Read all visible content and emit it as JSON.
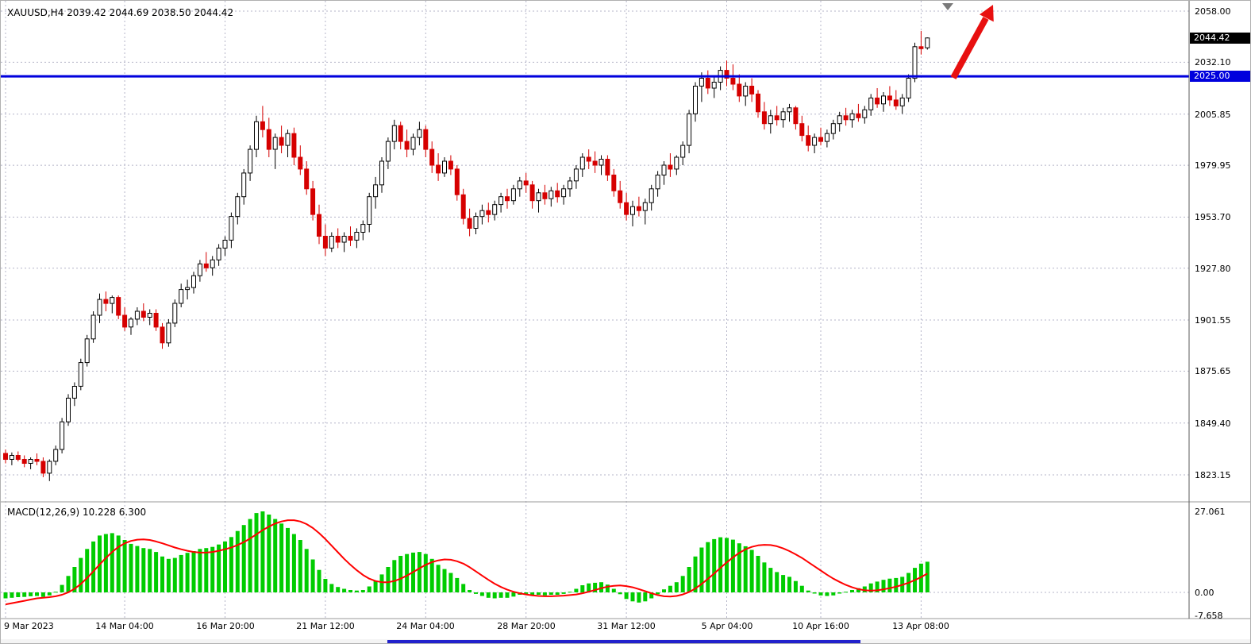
{
  "window": {
    "info_text": "XAUUSD,H4 2039.42 2044.69 2038.50 2044.42"
  },
  "colors": {
    "background": "#ffffff",
    "grid": "#b4b4c8",
    "up_fill": "#ffffff",
    "up_outline": "#000000",
    "down_candle": "#d60000",
    "level_line": "#0000dd",
    "current_badge_bg": "#000000",
    "level_badge_bg": "#0000dd",
    "histogram": "#00cc00",
    "signal_line": "#ff0000",
    "separator": "#9a9a9a",
    "axis_line": "#5a5a5a"
  },
  "annotations": {
    "trend_arrow_color": "#e81010",
    "trend_arrow_direction": "up-right",
    "shift_marker_color": "#7a7a7a"
  },
  "chart_data": {
    "type": "candlestick",
    "symbol": "XAUUSD",
    "timeframe": "H4",
    "last_bar": {
      "open": 2039.42,
      "high": 2044.69,
      "low": 2038.5,
      "close": 2044.42
    },
    "current_price": {
      "label": "2044.42",
      "price": 2044.42
    },
    "horizontal_level": {
      "label": "2025.00",
      "price": 2025.0
    },
    "price_ticks": [
      {
        "label": "2058.00",
        "price": 2058.0
      },
      {
        "label": "2032.10",
        "price": 2032.1
      },
      {
        "label": "2005.85",
        "price": 2005.85
      },
      {
        "label": "1979.95",
        "price": 1979.95
      },
      {
        "label": "1953.70",
        "price": 1953.7
      },
      {
        "label": "1927.80",
        "price": 1927.8
      },
      {
        "label": "1901.55",
        "price": 1901.55
      },
      {
        "label": "1875.65",
        "price": 1875.65
      },
      {
        "label": "1849.40",
        "price": 1849.4
      },
      {
        "label": "1823.15",
        "price": 1823.15
      }
    ],
    "time_ticks": [
      {
        "label": "9 Mar 2023",
        "bar": 0
      },
      {
        "label": "14 Mar 04:00",
        "bar": 19
      },
      {
        "label": "16 Mar 20:00",
        "bar": 35
      },
      {
        "label": "21 Mar 12:00",
        "bar": 51
      },
      {
        "label": "24 Mar 04:00",
        "bar": 67
      },
      {
        "label": "28 Mar 20:00",
        "bar": 83
      },
      {
        "label": "31 Mar 12:00",
        "bar": 99
      },
      {
        "label": "5 Apr 04:00",
        "bar": 115
      },
      {
        "label": "10 Apr 16:00",
        "bar": 130
      },
      {
        "label": "13 Apr 08:00",
        "bar": 146
      }
    ],
    "candles": [
      [
        1834,
        1836,
        1829,
        1831
      ],
      [
        1831,
        1834.5,
        1828,
        1833
      ],
      [
        1833,
        1835,
        1830,
        1831
      ],
      [
        1831,
        1833,
        1827,
        1829
      ],
      [
        1829,
        1832,
        1826,
        1831
      ],
      [
        1831,
        1834,
        1828,
        1830
      ],
      [
        1830,
        1832,
        1822,
        1824
      ],
      [
        1824,
        1831,
        1820,
        1830
      ],
      [
        1830,
        1838,
        1828,
        1836
      ],
      [
        1836,
        1852,
        1834,
        1850
      ],
      [
        1850,
        1864,
        1848,
        1862
      ],
      [
        1862,
        1870,
        1858,
        1868
      ],
      [
        1868,
        1882,
        1866,
        1880
      ],
      [
        1880,
        1894,
        1878,
        1892
      ],
      [
        1892,
        1906,
        1890,
        1904
      ],
      [
        1904,
        1915,
        1900,
        1912
      ],
      [
        1912,
        1916,
        1906,
        1910
      ],
      [
        1910,
        1914,
        1905,
        1913
      ],
      [
        1913,
        1914,
        1902,
        1904
      ],
      [
        1904,
        1908,
        1896,
        1898
      ],
      [
        1898,
        1903,
        1894,
        1902
      ],
      [
        1902,
        1908,
        1899,
        1906
      ],
      [
        1906,
        1910,
        1901,
        1903
      ],
      [
        1903,
        1907,
        1899,
        1905
      ],
      [
        1905,
        1907,
        1896,
        1898
      ],
      [
        1898,
        1900,
        1887,
        1890
      ],
      [
        1890,
        1902,
        1888,
        1900
      ],
      [
        1900,
        1912,
        1898,
        1910
      ],
      [
        1910,
        1920,
        1908,
        1917
      ],
      [
        1917,
        1922,
        1912,
        1918
      ],
      [
        1918,
        1926,
        1915,
        1924
      ],
      [
        1924,
        1932,
        1921,
        1930
      ],
      [
        1930,
        1936,
        1926,
        1928
      ],
      [
        1928,
        1934,
        1924,
        1932
      ],
      [
        1932,
        1940,
        1929,
        1938
      ],
      [
        1938,
        1944,
        1934,
        1942
      ],
      [
        1942,
        1956,
        1938,
        1954
      ],
      [
        1954,
        1966,
        1950,
        1964
      ],
      [
        1964,
        1978,
        1960,
        1976
      ],
      [
        1976,
        1990,
        1972,
        1988
      ],
      [
        1988,
        2005,
        1984,
        2002
      ],
      [
        2002,
        2010,
        1994,
        1998
      ],
      [
        1998,
        2004,
        1984,
        1988
      ],
      [
        1988,
        1996,
        1978,
        1994
      ],
      [
        1994,
        2000,
        1986,
        1990
      ],
      [
        1990,
        1998,
        1984,
        1996
      ],
      [
        1996,
        1999,
        1980,
        1984
      ],
      [
        1984,
        1990,
        1975,
        1978
      ],
      [
        1978,
        1982,
        1965,
        1968
      ],
      [
        1968,
        1972,
        1952,
        1955
      ],
      [
        1955,
        1960,
        1940,
        1944
      ],
      [
        1944,
        1950,
        1934,
        1938
      ],
      [
        1938,
        1946,
        1936,
        1944
      ],
      [
        1944,
        1948,
        1938,
        1941
      ],
      [
        1941,
        1946,
        1936,
        1944
      ],
      [
        1944,
        1949,
        1939,
        1942
      ],
      [
        1942,
        1948,
        1938,
        1946
      ],
      [
        1946,
        1952,
        1942,
        1950
      ],
      [
        1950,
        1966,
        1946,
        1964
      ],
      [
        1964,
        1974,
        1958,
        1970
      ],
      [
        1970,
        1984,
        1966,
        1982
      ],
      [
        1982,
        1994,
        1978,
        1992
      ],
      [
        1992,
        2003,
        1988,
        2000
      ],
      [
        2000,
        2002,
        1988,
        1992
      ],
      [
        1992,
        1998,
        1984,
        1988
      ],
      [
        1988,
        1996,
        1985,
        1994
      ],
      [
        1994,
        2002,
        1990,
        1998
      ],
      [
        1998,
        2000,
        1984,
        1988
      ],
      [
        1988,
        1992,
        1976,
        1980
      ],
      [
        1980,
        1986,
        1972,
        1976
      ],
      [
        1976,
        1984,
        1974,
        1982
      ],
      [
        1982,
        1985,
        1975,
        1978
      ],
      [
        1978,
        1980,
        1962,
        1965
      ],
      [
        1965,
        1968,
        1950,
        1953
      ],
      [
        1953,
        1958,
        1944,
        1948
      ],
      [
        1948,
        1956,
        1945,
        1954
      ],
      [
        1954,
        1960,
        1950,
        1957
      ],
      [
        1957,
        1961,
        1951,
        1955
      ],
      [
        1955,
        1962,
        1952,
        1960
      ],
      [
        1960,
        1966,
        1956,
        1964
      ],
      [
        1964,
        1968,
        1958,
        1962
      ],
      [
        1962,
        1970,
        1960,
        1968
      ],
      [
        1968,
        1974,
        1964,
        1972
      ],
      [
        1972,
        1976,
        1966,
        1970
      ],
      [
        1970,
        1972,
        1958,
        1962
      ],
      [
        1962,
        1968,
        1956,
        1966
      ],
      [
        1966,
        1970,
        1960,
        1963
      ],
      [
        1963,
        1969,
        1959,
        1967
      ],
      [
        1967,
        1971,
        1961,
        1964
      ],
      [
        1964,
        1970,
        1960,
        1968
      ],
      [
        1968,
        1974,
        1964,
        1972
      ],
      [
        1972,
        1980,
        1968,
        1978
      ],
      [
        1978,
        1986,
        1974,
        1984
      ],
      [
        1984,
        1988,
        1978,
        1982
      ],
      [
        1982,
        1987,
        1976,
        1980
      ],
      [
        1980,
        1985,
        1975,
        1983
      ],
      [
        1983,
        1985,
        1972,
        1975
      ],
      [
        1975,
        1978,
        1964,
        1967
      ],
      [
        1967,
        1972,
        1958,
        1961
      ],
      [
        1961,
        1966,
        1952,
        1955
      ],
      [
        1955,
        1962,
        1949,
        1959
      ],
      [
        1959,
        1964,
        1954,
        1957
      ],
      [
        1957,
        1963,
        1950,
        1961
      ],
      [
        1961,
        1970,
        1957,
        1968
      ],
      [
        1968,
        1977,
        1964,
        1975
      ],
      [
        1975,
        1982,
        1970,
        1980
      ],
      [
        1980,
        1986,
        1974,
        1978
      ],
      [
        1978,
        1985,
        1975,
        1984
      ],
      [
        1984,
        1992,
        1980,
        1990
      ],
      [
        1990,
        2008,
        1986,
        2006
      ],
      [
        2006,
        2022,
        2002,
        2020
      ],
      [
        2020,
        2027,
        2012,
        2024
      ],
      [
        2024,
        2028,
        2016,
        2019
      ],
      [
        2019,
        2025,
        2014,
        2022
      ],
      [
        2022,
        2030,
        2018,
        2028
      ],
      [
        2028,
        2033,
        2020,
        2024
      ],
      [
        2024,
        2031,
        2018,
        2021
      ],
      [
        2021,
        2026,
        2012,
        2015
      ],
      [
        2015,
        2022,
        2010,
        2020
      ],
      [
        2020,
        2024,
        2012,
        2016
      ],
      [
        2016,
        2018,
        2004,
        2007
      ],
      [
        2007,
        2012,
        1998,
        2001
      ],
      [
        2001,
        2008,
        1996,
        2005
      ],
      [
        2005,
        2010,
        2000,
        2003
      ],
      [
        2003,
        2009,
        1999,
        2007
      ],
      [
        2007,
        2011,
        2002,
        2009
      ],
      [
        2009,
        2010,
        1998,
        2001
      ],
      [
        2001,
        2005,
        1992,
        1995
      ],
      [
        1995,
        2000,
        1987,
        1990
      ],
      [
        1990,
        1996,
        1986,
        1994
      ],
      [
        1994,
        1999,
        1990,
        1992
      ],
      [
        1992,
        1998,
        1989,
        1996
      ],
      [
        1996,
        2003,
        1993,
        2001
      ],
      [
        2001,
        2007,
        1997,
        2005
      ],
      [
        2005,
        2009,
        2000,
        2003
      ],
      [
        2003,
        2008,
        1999,
        2006
      ],
      [
        2006,
        2011,
        2002,
        2004
      ],
      [
        2004,
        2010,
        2001,
        2008
      ],
      [
        2008,
        2016,
        2005,
        2014
      ],
      [
        2014,
        2019,
        2009,
        2011
      ],
      [
        2011,
        2017,
        2007,
        2015
      ],
      [
        2015,
        2020,
        2010,
        2013
      ],
      [
        2013,
        2018,
        2008,
        2010
      ],
      [
        2010,
        2016,
        2006,
        2014
      ],
      [
        2014,
        2026,
        2012,
        2024
      ],
      [
        2024,
        2042,
        2022,
        2040
      ],
      [
        2040,
        2048,
        2036,
        2039
      ],
      [
        2039.4,
        2044.7,
        2038.5,
        2044.4
      ]
    ],
    "macd": {
      "label": "MACD(12,26,9) 10.228 6.300",
      "params": "12,26,9",
      "macd_value": 10.228,
      "signal_value": 6.3,
      "axis_ticks": [
        {
          "label": "27.061",
          "value": 27.061
        },
        {
          "label": "0.00",
          "value": 0
        },
        {
          "label": "-7.658",
          "value": -7.658
        }
      ],
      "histogram": [
        -2,
        -1.8,
        -1.6,
        -1.5,
        -1.3,
        -1.2,
        -1.5,
        -1,
        0.2,
        2.5,
        5.5,
        8.5,
        11.5,
        14.5,
        17,
        19,
        19.5,
        19.8,
        19,
        17.5,
        16.2,
        15.5,
        14.8,
        14.5,
        13.5,
        12,
        11.2,
        11.5,
        12.5,
        13.2,
        13.8,
        14.5,
        14.8,
        15.2,
        16,
        17,
        18.5,
        20.5,
        22.5,
        24.5,
        26.5,
        27.061,
        26,
        24.5,
        23,
        21.5,
        19.5,
        17.5,
        14.5,
        11,
        7.5,
        4.5,
        2.8,
        1.8,
        1.2,
        0.8,
        0.6,
        0.8,
        2,
        3.8,
        6,
        8.5,
        10.8,
        12.2,
        12.8,
        13.3,
        13.5,
        12.8,
        11.2,
        9.2,
        7.8,
        6.5,
        4.8,
        2.8,
        0.8,
        -0.5,
        -1.2,
        -1.8,
        -2,
        -1.8,
        -1.8,
        -1.4,
        -0.8,
        -0.5,
        -0.8,
        -0.8,
        -1,
        -0.8,
        -0.8,
        -0.5,
        0.2,
        1.2,
        2.4,
        3,
        3.2,
        3.4,
        2.6,
        1.2,
        -0.6,
        -2.2,
        -3,
        -3.4,
        -3,
        -2,
        -0.6,
        1,
        2.2,
        3.4,
        5.5,
        8.5,
        12,
        15,
        16.8,
        17.8,
        18.4,
        18.2,
        17.6,
        16.4,
        15.4,
        14.2,
        12.2,
        10,
        8.2,
        6.8,
        5.8,
        5.2,
        3.8,
        2.2,
        0.6,
        -0.4,
        -1,
        -1.2,
        -1,
        -0.4,
        0.2,
        0.8,
        1.4,
        2,
        3,
        3.6,
        4.2,
        4.6,
        4.8,
        5.2,
        6.5,
        8.2,
        9.6,
        10.228
      ],
      "signal": [
        -4,
        -3.6,
        -3.2,
        -2.8,
        -2.4,
        -2,
        -1.8,
        -1.6,
        -1.3,
        -0.8,
        0,
        1.2,
        2.8,
        4.8,
        7,
        9.3,
        11.5,
        13.5,
        15.2,
        16.4,
        17.2,
        17.6,
        17.7,
        17.5,
        17,
        16.4,
        15.7,
        15,
        14.4,
        13.9,
        13.5,
        13.3,
        13.3,
        13.5,
        13.9,
        14.4,
        15,
        15.8,
        16.8,
        18,
        19.4,
        20.8,
        22,
        23,
        23.7,
        24.1,
        24.1,
        23.7,
        22.8,
        21.5,
        19.8,
        17.8,
        15.6,
        13.4,
        11.2,
        9.2,
        7.4,
        5.8,
        4.6,
        3.8,
        3.4,
        3.4,
        3.8,
        4.6,
        5.6,
        6.8,
        8,
        9.2,
        10.1,
        10.7,
        11,
        10.9,
        10.4,
        9.6,
        8.4,
        7,
        5.6,
        4.2,
        2.9,
        1.8,
        0.9,
        0.2,
        -0.3,
        -0.7,
        -1,
        -1.2,
        -1.3,
        -1.3,
        -1.2,
        -1.1,
        -0.9,
        -0.7,
        -0.3,
        0.2,
        0.8,
        1.4,
        1.9,
        2.2,
        2.3,
        2.1,
        1.7,
        1.1,
        0.4,
        -0.3,
        -0.9,
        -1.3,
        -1.4,
        -1.2,
        -0.7,
        0.1,
        1.3,
        2.8,
        4.5,
        6.3,
        8.2,
        10,
        11.7,
        13.2,
        14.4,
        15.2,
        15.7,
        15.9,
        15.8,
        15.4,
        14.7,
        13.8,
        12.7,
        11.5,
        10.1,
        8.7,
        7.3,
        5.9,
        4.6,
        3.5,
        2.5,
        1.7,
        1.1,
        0.7,
        0.6,
        0.7,
        1,
        1.4,
        1.9,
        2.5,
        3.2,
        4.1,
        5.1,
        6.3
      ]
    }
  }
}
